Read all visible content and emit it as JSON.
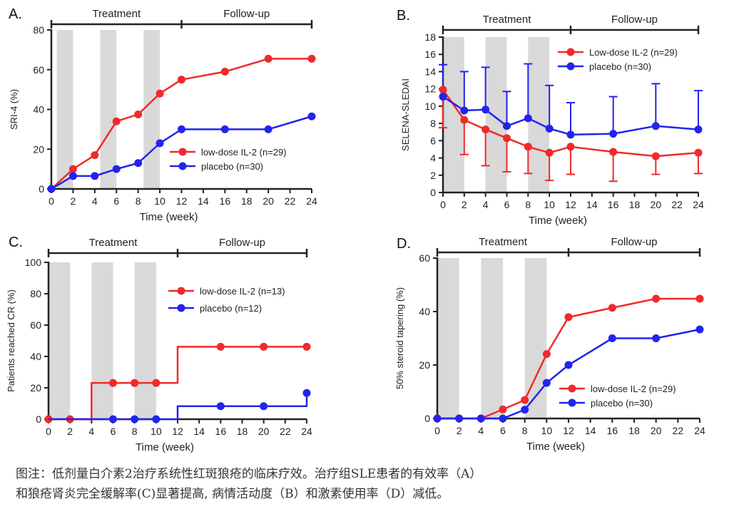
{
  "caption": {
    "line1": "图注：低剂量白介素2治疗系统性红斑狼疮的临床疗效。治疗组SLE患者的有效率（A）",
    "line2": "和狼疮肾炎完全缓解率(C)显著提高, 病情活动度（B）和激素使用率（D）减低。"
  },
  "colors": {
    "red": "#f02a2a",
    "blue": "#2323ee",
    "band": "#d9d9d9",
    "axis": "#222222"
  },
  "chart_data": [
    {
      "id": "A",
      "panel_label": "A.",
      "type": "line",
      "phase_labels": [
        "Treatment",
        "Follow-up"
      ],
      "treatment_range": [
        0,
        12
      ],
      "followup_range": [
        12,
        24
      ],
      "shaded_bands": [
        [
          0.5,
          2
        ],
        [
          4.5,
          6
        ],
        [
          8.5,
          10
        ]
      ],
      "xlabel": "Time  (week)",
      "ylabel": "SRI-4 (%)",
      "xlim": [
        0,
        24
      ],
      "ylim": [
        0,
        80
      ],
      "xticks": [
        0,
        2,
        4,
        6,
        8,
        10,
        12,
        14,
        16,
        18,
        20,
        22,
        24
      ],
      "yticks": [
        0,
        20,
        40,
        60,
        80
      ],
      "step": false,
      "grid": false,
      "legend": {
        "placement": "middle-right"
      },
      "series": [
        {
          "name": "low-dose IL-2 (n=29)",
          "color": "red",
          "x": [
            0,
            2,
            4,
            6,
            8,
            10,
            12,
            16,
            20,
            24
          ],
          "y": [
            0,
            10,
            17,
            34,
            37.5,
            48,
            55,
            59,
            65.5,
            65.5
          ]
        },
        {
          "name": "placebo    (n=30)",
          "color": "blue",
          "x": [
            0,
            2,
            4,
            6,
            8,
            10,
            12,
            16,
            20,
            24
          ],
          "y": [
            0,
            6.5,
            6.5,
            10,
            13,
            23,
            30,
            30,
            30,
            36.5
          ]
        }
      ]
    },
    {
      "id": "B",
      "panel_label": "B.",
      "type": "line",
      "phase_labels": [
        "Treatment",
        "Follow-up"
      ],
      "treatment_range": [
        0,
        12
      ],
      "followup_range": [
        12,
        24
      ],
      "shaded_bands": [
        [
          0,
          2
        ],
        [
          4,
          6
        ],
        [
          8,
          10
        ]
      ],
      "xlabel": "Time  (week)",
      "ylabel": "SELENA-SLEDAI",
      "xlim": [
        0,
        24
      ],
      "ylim": [
        0,
        18
      ],
      "xticks": [
        0,
        2,
        4,
        6,
        8,
        10,
        12,
        14,
        16,
        18,
        20,
        22,
        24
      ],
      "yticks": [
        0,
        2,
        4,
        6,
        8,
        10,
        12,
        14,
        16,
        18
      ],
      "step": false,
      "grid": false,
      "legend": {
        "placement": "top-right"
      },
      "series": [
        {
          "name": "Low-dose IL-2 (n=29)",
          "color": "red",
          "error_direction": "down",
          "x": [
            0,
            2,
            4,
            6,
            8,
            10,
            12,
            16,
            20,
            24
          ],
          "y": [
            11.9,
            8.4,
            7.3,
            6.3,
            5.3,
            4.6,
            5.3,
            4.7,
            4.2,
            4.6
          ],
          "error": [
            4.4,
            4.0,
            4.2,
            3.9,
            3.1,
            3.2,
            3.2,
            3.4,
            2.1,
            2.4
          ]
        },
        {
          "name": "placebo (n=30)",
          "color": "blue",
          "error_direction": "up",
          "x": [
            0,
            2,
            4,
            6,
            8,
            10,
            12,
            16,
            20,
            24
          ],
          "y": [
            11.1,
            9.5,
            9.6,
            7.7,
            8.6,
            7.4,
            6.7,
            6.8,
            7.7,
            7.3
          ],
          "error": [
            3.7,
            4.5,
            4.9,
            4.0,
            6.3,
            5.0,
            3.7,
            4.3,
            4.9,
            4.5
          ]
        }
      ]
    },
    {
      "id": "C",
      "panel_label": "C.",
      "type": "line",
      "phase_labels": [
        "Treatment",
        "Follow-up"
      ],
      "treatment_range": [
        0,
        12
      ],
      "followup_range": [
        12,
        24
      ],
      "shaded_bands": [
        [
          0,
          2
        ],
        [
          4,
          6
        ],
        [
          8,
          10
        ]
      ],
      "xlabel": "Time (week)",
      "ylabel": "Patients reached CR (%)",
      "xlim": [
        0,
        24
      ],
      "ylim": [
        0,
        100
      ],
      "xticks": [
        0,
        2,
        4,
        6,
        8,
        10,
        12,
        14,
        16,
        18,
        20,
        22,
        24
      ],
      "yticks": [
        0,
        20,
        40,
        60,
        80,
        100
      ],
      "step": true,
      "grid": false,
      "legend": {
        "placement": "top-right"
      },
      "series": [
        {
          "name": "low-dose IL-2 (n=13)",
          "color": "red",
          "x": [
            0,
            2,
            4,
            6,
            8,
            10,
            12,
            16,
            20,
            24
          ],
          "y": [
            0,
            0,
            23.1,
            23.1,
            23.1,
            23.1,
            46.2,
            46.2,
            46.2,
            46.2
          ],
          "markers_x": [
            0,
            2,
            6,
            8,
            10,
            16,
            20,
            24
          ]
        },
        {
          "name": "placebo (n=12)",
          "color": "blue",
          "x": [
            0,
            2,
            4,
            6,
            8,
            10,
            12,
            16,
            20,
            24
          ],
          "y": [
            0,
            0,
            0,
            0,
            0,
            0,
            8.3,
            8.3,
            8.3,
            16.7
          ],
          "markers_x": [
            6,
            8,
            10,
            16,
            20,
            24
          ]
        }
      ]
    },
    {
      "id": "D",
      "panel_label": "D.",
      "type": "line",
      "phase_labels": [
        "Treatment",
        "Follow-up"
      ],
      "treatment_range": [
        0,
        12
      ],
      "followup_range": [
        12,
        24
      ],
      "shaded_bands": [
        [
          0,
          2
        ],
        [
          4,
          6
        ],
        [
          8,
          10
        ]
      ],
      "xlabel": "Time  (week)",
      "ylabel": "50% steroid tapering  (%)",
      "xlim": [
        0,
        24
      ],
      "ylim": [
        0,
        60
      ],
      "xticks": [
        0,
        2,
        4,
        6,
        8,
        10,
        12,
        14,
        16,
        18,
        20,
        22,
        24
      ],
      "yticks": [
        0,
        20,
        40,
        60
      ],
      "step": false,
      "grid": false,
      "legend": {
        "placement": "middle-right"
      },
      "series": [
        {
          "name": "low-dose IL-2 (n=29)",
          "color": "red",
          "x": [
            0,
            2,
            4,
            6,
            8,
            10,
            12,
            16,
            20,
            24
          ],
          "y": [
            0,
            0,
            0,
            3.4,
            6.9,
            24.1,
            37.9,
            41.4,
            44.8,
            44.8
          ]
        },
        {
          "name": "placebo (n=30)",
          "color": "blue",
          "x": [
            0,
            2,
            4,
            6,
            8,
            10,
            12,
            16,
            20,
            24
          ],
          "y": [
            0,
            0,
            0,
            0,
            3.3,
            13.3,
            20,
            30,
            30,
            33.3
          ]
        }
      ]
    }
  ]
}
